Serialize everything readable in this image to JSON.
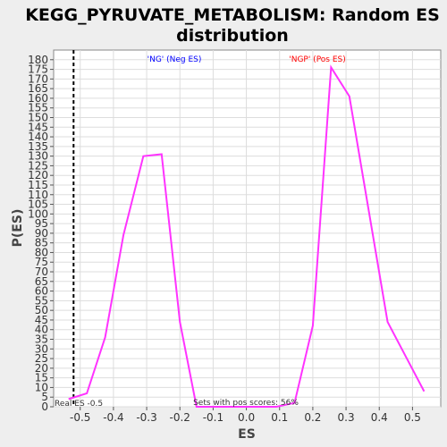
{
  "chart_data": {
    "type": "line",
    "title_line1": "KEGG_PYRUVATE_METABOLISM: Random ES",
    "title_line2": "distribution",
    "xlabel": "ES",
    "ylabel": "P(ES)",
    "xlim": [
      -0.58,
      0.585
    ],
    "ylim": [
      0,
      185
    ],
    "x_ticks": [
      -0.5,
      -0.4,
      -0.3,
      -0.2,
      -0.1,
      0.0,
      0.1,
      0.2,
      0.3,
      0.4,
      0.5
    ],
    "y_ticks": [
      0,
      5,
      10,
      15,
      20,
      25,
      30,
      35,
      40,
      45,
      50,
      55,
      60,
      65,
      70,
      75,
      80,
      85,
      90,
      95,
      100,
      105,
      110,
      115,
      120,
      125,
      130,
      135,
      140,
      145,
      150,
      155,
      160,
      165,
      170,
      175,
      180
    ],
    "series": [
      {
        "color": "#ff33ff",
        "x": [
          -0.535,
          -0.48,
          -0.425,
          -0.37,
          -0.31,
          -0.255,
          -0.2,
          -0.15,
          -0.09,
          0.09,
          0.145,
          0.2,
          0.255,
          0.31,
          0.37,
          0.425,
          0.48,
          0.535
        ],
        "y": [
          4,
          7,
          36,
          89,
          130,
          131,
          44,
          0,
          0,
          0,
          2,
          42,
          176,
          161,
          100,
          44,
          26,
          8
        ]
      }
    ],
    "real_es": -0.52,
    "annotations": {
      "neg_label": "'NG' (Neg ES)",
      "pos_label": "'NGP' (Pos ES)",
      "real_es_label": "Real ES -0.5",
      "pos_scores_label": "Sets with pos scores: 56%"
    },
    "colors": {
      "neg": "#0000ff",
      "pos": "#ff0000",
      "line": "#ff33ff",
      "grid": "#dddddd",
      "plot_bg": "#ffffff"
    }
  }
}
